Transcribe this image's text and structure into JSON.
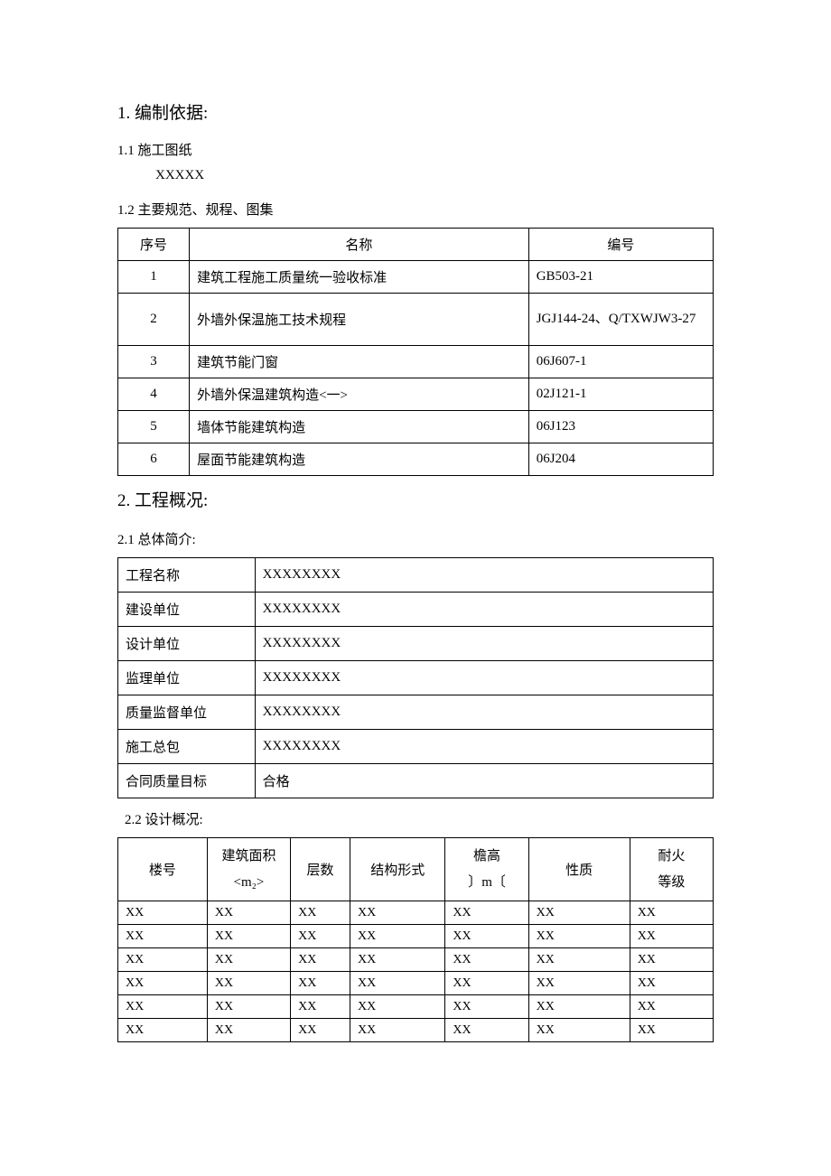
{
  "section1": {
    "heading": "1. 编制依据:",
    "sub1": {
      "heading": "1.1 施工图纸",
      "body": "XXXXX"
    },
    "sub2": {
      "heading": "1.2 主要规范、规程、图集",
      "headers": {
        "seq": "序号",
        "name": "名称",
        "code": "编号"
      },
      "rows": [
        {
          "seq": "1",
          "name": "建筑工程施工质量统一验收标准",
          "code": "GB503-21"
        },
        {
          "seq": "2",
          "name": "外墙外保温施工技术规程",
          "code": "JGJ144-24、Q/TXWJW3-27"
        },
        {
          "seq": "3",
          "name": "建筑节能门窗",
          "code": "06J607-1"
        },
        {
          "seq": "4",
          "name": "外墙外保温建筑构造<一>",
          "code": "02J121-1"
        },
        {
          "seq": "5",
          "name": "墙体节能建筑构造",
          "code": "06J123"
        },
        {
          "seq": "6",
          "name": "屋面节能建筑构造",
          "code": "06J204"
        }
      ]
    }
  },
  "section2": {
    "heading": "2. 工程概况:",
    "sub1": {
      "heading": "2.1 总体简介:",
      "rows": [
        {
          "label": "工程名称",
          "value": "XXXXXXXX"
        },
        {
          "label": "建设单位",
          "value": "XXXXXXXX"
        },
        {
          "label": "设计单位",
          "value": "XXXXXXXX"
        },
        {
          "label": "监理单位",
          "value": "XXXXXXXX"
        },
        {
          "label": "质量监督单位",
          "value": "XXXXXXXX"
        },
        {
          "label": "施工总包",
          "value": "XXXXXXXX"
        },
        {
          "label": "合同质量目标",
          "value": "合格"
        }
      ]
    },
    "sub2": {
      "heading": "2.2 设计概况:",
      "headers": {
        "c1": "楼号",
        "c2a": "建筑面积",
        "c2b": "<m₂>",
        "c3": "层数",
        "c4": "结构形式",
        "c5a": "檐高",
        "c5b": "〕m〔",
        "c6": "性质",
        "c7a": "耐火",
        "c7b": "等级"
      },
      "rows": [
        {
          "c1": "XX",
          "c2": "XX",
          "c3": "XX",
          "c4": "XX",
          "c5": "XX",
          "c6": "XX",
          "c7": "XX"
        },
        {
          "c1": "XX",
          "c2": "XX",
          "c3": "XX",
          "c4": "XX",
          "c5": "XX",
          "c6": "XX",
          "c7": "XX"
        },
        {
          "c1": "XX",
          "c2": "XX",
          "c3": "XX",
          "c4": "XX",
          "c5": "XX",
          "c6": "XX",
          "c7": "XX"
        },
        {
          "c1": "XX",
          "c2": "XX",
          "c3": "XX",
          "c4": "XX",
          "c5": "XX",
          "c6": "XX",
          "c7": "XX"
        },
        {
          "c1": "XX",
          "c2": "XX",
          "c3": "XX",
          "c4": "XX",
          "c5": "XX",
          "c6": "XX",
          "c7": "XX"
        },
        {
          "c1": "XX",
          "c2": "XX",
          "c3": "XX",
          "c4": "XX",
          "c5": "XX",
          "c6": "XX",
          "c7": "XX"
        }
      ]
    }
  }
}
